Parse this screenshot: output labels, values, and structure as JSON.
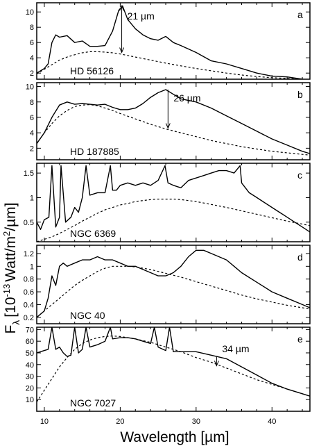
{
  "chart_data": [
    {
      "type": "line",
      "panel_letter": "a",
      "object_label": "HD 56126",
      "ylim": [
        1.2,
        11.2
      ],
      "yticks": [
        2,
        4,
        6,
        8,
        10
      ],
      "annotation": {
        "text": "21 µm",
        "x": 20.2,
        "y_top": 10.8,
        "y_bottom": 4.7
      },
      "series": [
        {
          "role": "observed",
          "x": [
            9,
            10,
            10.5,
            11,
            11.5,
            12,
            13,
            14,
            15,
            16,
            17,
            18,
            19,
            19.8,
            20.3,
            21,
            22,
            23,
            24,
            25,
            26,
            27,
            28,
            30,
            32,
            34,
            36,
            38,
            40,
            42,
            44,
            45
          ],
          "y": [
            2.0,
            2.6,
            3.2,
            6.0,
            7.0,
            6.7,
            6.9,
            6.0,
            6.2,
            5.5,
            5.5,
            5.6,
            7.5,
            10.2,
            10.8,
            9.0,
            7.8,
            7.0,
            6.5,
            6.3,
            6.8,
            6.0,
            5.6,
            4.7,
            3.6,
            3.2,
            2.6,
            2.0,
            1.6,
            1.5,
            1.2,
            1.1
          ]
        },
        {
          "role": "continuum",
          "x": [
            9,
            10,
            11,
            12,
            13,
            14,
            15,
            16,
            17,
            18,
            19,
            20,
            22,
            24,
            26,
            28,
            30,
            32,
            34,
            36,
            38,
            40,
            42,
            44,
            45
          ],
          "y": [
            1.9,
            2.5,
            3.1,
            3.7,
            4.1,
            4.4,
            4.65,
            4.8,
            4.8,
            4.75,
            4.65,
            4.5,
            4.1,
            3.7,
            3.3,
            2.95,
            2.6,
            2.3,
            2.0,
            1.75,
            1.55,
            1.4,
            1.3,
            1.2,
            1.15
          ]
        }
      ]
    },
    {
      "type": "line",
      "panel_letter": "b",
      "object_label": "HD 187885",
      "ylim": [
        0.5,
        10.5
      ],
      "yticks": [
        2,
        4,
        6,
        8,
        10
      ],
      "annotation": {
        "text": "26 µm",
        "x": 26.3,
        "y_top": 9.6,
        "y_bottom": 4.6
      },
      "series": [
        {
          "role": "observed",
          "x": [
            9,
            10,
            11,
            12,
            13,
            14,
            15,
            16,
            17,
            18,
            19,
            20,
            21,
            22,
            23,
            24,
            25,
            26,
            27,
            28,
            30,
            32,
            34,
            36,
            38,
            40,
            42,
            44,
            45
          ],
          "y": [
            2.6,
            4.0,
            6.0,
            7.6,
            8.0,
            7.7,
            7.8,
            7.7,
            7.6,
            7.7,
            7.3,
            7.0,
            7.0,
            7.2,
            7.8,
            8.6,
            9.2,
            9.6,
            9.0,
            8.4,
            8.0,
            7.2,
            6.2,
            5.2,
            4.2,
            3.2,
            2.4,
            1.6,
            1.3
          ]
        },
        {
          "role": "continuum",
          "x": [
            9,
            10,
            11,
            12,
            13,
            14,
            15,
            16,
            17,
            18,
            19,
            20,
            22,
            24,
            26,
            28,
            30,
            32,
            34,
            36,
            38,
            40,
            42,
            44,
            45
          ],
          "y": [
            2.6,
            4.0,
            5.2,
            6.2,
            6.9,
            7.4,
            7.6,
            7.65,
            7.5,
            7.2,
            6.9,
            6.5,
            5.8,
            5.1,
            4.5,
            4.0,
            3.5,
            3.0,
            2.6,
            2.2,
            1.9,
            1.6,
            1.4,
            1.2,
            1.1
          ]
        }
      ]
    },
    {
      "type": "line",
      "panel_letter": "c",
      "object_label": "NGC 6369",
      "ylim": [
        0.1,
        1.7
      ],
      "yticks": [
        0.5,
        1.0,
        1.5
      ],
      "series": [
        {
          "role": "observed",
          "x": [
            9,
            9.5,
            10,
            10.6,
            11,
            11.5,
            12,
            12.2,
            12.8,
            13.5,
            14,
            14.5,
            15,
            15.5,
            16,
            17,
            18,
            18.7,
            19,
            19.5,
            20,
            21,
            22,
            23,
            24,
            25,
            25.9,
            26.3,
            27,
            28,
            29,
            30,
            31,
            32,
            33,
            34,
            35,
            35.8,
            36,
            37,
            38,
            39,
            40,
            41,
            42,
            43,
            44,
            45
          ],
          "y": [
            0.5,
            0.35,
            0.55,
            0.6,
            1.65,
            0.4,
            0.6,
            1.65,
            0.5,
            0.6,
            0.8,
            0.7,
            1.0,
            1.65,
            1.05,
            1.1,
            1.1,
            1.65,
            1.15,
            1.15,
            1.25,
            1.3,
            1.25,
            1.3,
            1.25,
            1.35,
            1.65,
            1.3,
            1.25,
            1.2,
            1.35,
            1.4,
            1.45,
            1.5,
            1.55,
            1.55,
            1.5,
            1.65,
            1.3,
            1.1,
            1.0,
            0.9,
            0.8,
            0.7,
            0.6,
            0.5,
            0.4,
            0.3
          ]
        },
        {
          "role": "continuum",
          "x": [
            9,
            10,
            11,
            12,
            13,
            14,
            15,
            16,
            17,
            18,
            19,
            20,
            21,
            22,
            23,
            24,
            25,
            26,
            27,
            28,
            29,
            30,
            32,
            34,
            36,
            38,
            40,
            42,
            44,
            45
          ],
          "y": [
            0.1,
            0.15,
            0.2,
            0.27,
            0.35,
            0.43,
            0.52,
            0.6,
            0.68,
            0.75,
            0.8,
            0.85,
            0.88,
            0.92,
            0.94,
            0.96,
            0.97,
            0.97,
            0.97,
            0.96,
            0.94,
            0.92,
            0.86,
            0.8,
            0.73,
            0.66,
            0.59,
            0.52,
            0.46,
            0.43
          ]
        }
      ]
    },
    {
      "type": "line",
      "panel_letter": "d",
      "object_label": "NGC 40",
      "ylim": [
        0.1,
        1.33
      ],
      "yticks": [
        0.2,
        0.4,
        0.6,
        0.8,
        1.0,
        1.2
      ],
      "series": [
        {
          "role": "observed",
          "x": [
            9,
            10,
            10.5,
            11,
            11.5,
            12,
            12.5,
            13,
            14,
            15,
            16,
            17,
            18,
            19,
            20,
            21,
            22,
            23,
            24,
            25,
            26,
            27,
            28,
            29,
            30,
            31,
            32,
            33,
            34,
            35,
            36,
            38,
            40,
            42,
            44,
            45
          ],
          "y": [
            0.2,
            0.3,
            0.5,
            0.85,
            0.7,
            1.0,
            1.05,
            1.0,
            1.05,
            1.1,
            1.1,
            1.15,
            1.1,
            1.1,
            1.05,
            1.0,
            1.0,
            0.95,
            0.9,
            0.85,
            0.85,
            0.9,
            1.0,
            1.15,
            1.25,
            1.25,
            1.2,
            1.15,
            1.1,
            1.0,
            0.9,
            0.75,
            0.6,
            0.5,
            0.4,
            0.35
          ]
        },
        {
          "role": "continuum",
          "x": [
            9,
            10,
            11,
            12,
            13,
            14,
            15,
            16,
            17,
            18,
            19,
            20,
            21,
            22,
            23,
            24,
            25,
            26,
            27,
            28,
            30,
            32,
            34,
            36,
            38,
            40,
            42,
            44,
            45
          ],
          "y": [
            0.2,
            0.3,
            0.4,
            0.5,
            0.6,
            0.7,
            0.78,
            0.85,
            0.92,
            0.97,
            1.0,
            1.0,
            1.0,
            0.99,
            0.97,
            0.95,
            0.92,
            0.89,
            0.86,
            0.83,
            0.76,
            0.69,
            0.62,
            0.55,
            0.49,
            0.44,
            0.39,
            0.35,
            0.33
          ]
        }
      ]
    },
    {
      "type": "line",
      "panel_letter": "e",
      "object_label": "NGC 7027",
      "ylim": [
        0,
        72
      ],
      "yticks": [
        10,
        20,
        30,
        40,
        50,
        60,
        70
      ],
      "annotation": {
        "text": "34 µm",
        "x": 32.7,
        "y_top": 47,
        "y_bottom": 39
      },
      "series": [
        {
          "role": "observed",
          "x": [
            9,
            10,
            10.5,
            11,
            11.5,
            12,
            12.5,
            13,
            13.5,
            14,
            14.5,
            15,
            15.5,
            16,
            17,
            18,
            18.7,
            19,
            20,
            21,
            22,
            23,
            24,
            24.5,
            25,
            26,
            26.5,
            27,
            28,
            30,
            32,
            34,
            36,
            38,
            40,
            42,
            44,
            45
          ],
          "y": [
            50,
            52,
            53,
            72,
            53,
            55,
            50,
            47,
            48,
            72,
            50,
            53,
            72,
            55,
            57,
            60,
            72,
            62,
            63,
            63,
            62,
            60,
            58,
            72,
            55,
            52,
            72,
            51,
            51,
            51,
            48,
            45,
            38,
            31,
            24,
            19,
            15,
            13
          ]
        },
        {
          "role": "continuum",
          "x": [
            9,
            10,
            11,
            12,
            13,
            14,
            15,
            16,
            17,
            18,
            19,
            20,
            21,
            22,
            24,
            26,
            28,
            30,
            32,
            34,
            36,
            38,
            40,
            42,
            44,
            45
          ],
          "y": [
            8,
            18,
            28,
            38,
            46,
            53,
            58,
            61,
            63,
            64,
            64.5,
            64,
            63,
            62,
            59,
            55,
            51,
            46,
            42,
            37,
            32,
            27,
            23,
            19,
            15,
            13
          ]
        }
      ]
    }
  ],
  "axes": {
    "x_label": "Wavelength [µm]",
    "xlim": [
      9,
      45
    ],
    "x_ticks": [
      10,
      20,
      30,
      40
    ]
  },
  "y_label": {
    "main": "F",
    "sub": "λ",
    "unit": "[10",
    "exp": "-13",
    "unit2": "Watt/m",
    "exp2": "2",
    "unit3": "/µm]"
  },
  "style": {
    "observed_color": "#000000",
    "continuum_color": "#000000",
    "continuum_dash": "3,3"
  }
}
